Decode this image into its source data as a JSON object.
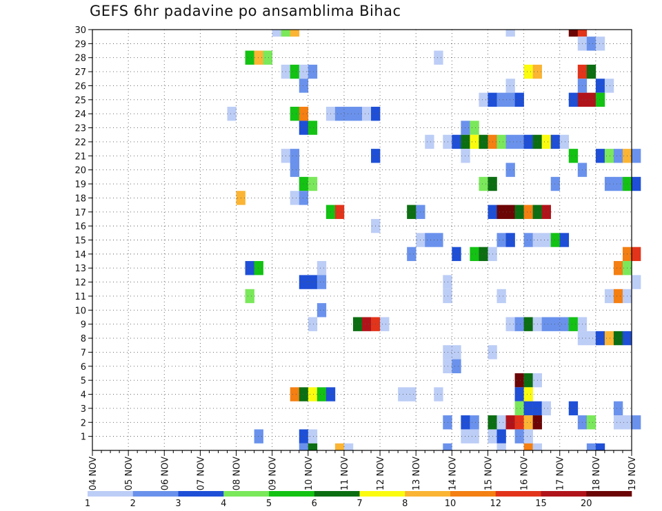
{
  "title": "GEFS 6hr padavine po ansamblima Bihac",
  "palette": {
    "c1": "#bccdf6",
    "c2": "#6a92ec",
    "c3": "#1e4fd6",
    "c4": "#7ae85a",
    "c5": "#13c213",
    "c6": "#0c6e12",
    "c7": "#fbfb10",
    "c8": "#fbb434",
    "c10": "#f47f12",
    "c12": "#e2341a",
    "c15": "#b0141a",
    "c20": "#6c0505"
  },
  "colorbar": {
    "labels": [
      "1",
      "2",
      "3",
      "4",
      "5",
      "6",
      "7",
      "8",
      "10",
      "12",
      "15",
      "20"
    ],
    "colors": [
      "c1",
      "c2",
      "c3",
      "c4",
      "c5",
      "c6",
      "c7",
      "c8",
      "c10",
      "c12",
      "c15",
      "c20"
    ]
  },
  "chart_data": {
    "type": "heatmap",
    "title": "GEFS 6hr padavine po ansamblima Bihac",
    "xlabel": "",
    "ylabel": "",
    "x_ticks": [
      "04 NOV",
      "05 NOV",
      "06 NOV",
      "07 NOV",
      "08 NOV",
      "09 NOV",
      "10 NOV",
      "11 NOV",
      "12 NOV",
      "13 NOV",
      "14 NOV",
      "15 NOV",
      "16 NOV",
      "17 NOV",
      "18 NOV",
      "19 NOV"
    ],
    "y_ticks": [
      "1",
      "2",
      "3",
      "4",
      "5",
      "6",
      "7",
      "8",
      "9",
      "10",
      "11",
      "12",
      "13",
      "14",
      "15",
      "16",
      "17",
      "18",
      "19",
      "20",
      "21",
      "22",
      "23",
      "24",
      "25",
      "26",
      "27",
      "28",
      "29",
      "30"
    ],
    "xlim": [
      "04 NOV",
      "19 NOV"
    ],
    "ylim": [
      0,
      30
    ],
    "step_hours": 6,
    "grid": true,
    "color_levels": [
      "1",
      "2",
      "3",
      "4",
      "5",
      "6",
      "7",
      "8",
      "10",
      "12",
      "15",
      "20"
    ],
    "rows": [
      {
        "y": 30,
        "cells": [
          [
            20,
            1
          ],
          [
            21,
            4
          ],
          [
            22,
            8
          ],
          [
            46,
            1
          ],
          [
            53,
            20
          ],
          [
            54,
            12
          ]
        ]
      },
      {
        "y": 29,
        "cells": [
          [
            54,
            1
          ],
          [
            55,
            2
          ],
          [
            56,
            1
          ]
        ]
      },
      {
        "y": 28,
        "cells": [
          [
            17,
            5
          ],
          [
            18,
            8
          ],
          [
            19,
            4
          ],
          [
            38,
            1
          ]
        ]
      },
      {
        "y": 27,
        "cells": [
          [
            21,
            1
          ],
          [
            22,
            5
          ],
          [
            23,
            1
          ],
          [
            24,
            2
          ],
          [
            48,
            7
          ],
          [
            49,
            8
          ],
          [
            54,
            12
          ],
          [
            55,
            6
          ]
        ]
      },
      {
        "y": 26,
        "cells": [
          [
            23,
            2
          ],
          [
            46,
            1
          ],
          [
            54,
            2
          ],
          [
            56,
            3
          ],
          [
            57,
            1
          ]
        ]
      },
      {
        "y": 25,
        "cells": [
          [
            43,
            1
          ],
          [
            44,
            3
          ],
          [
            45,
            2
          ],
          [
            46,
            2
          ],
          [
            47,
            3
          ],
          [
            53,
            3
          ],
          [
            54,
            15
          ],
          [
            55,
            15
          ],
          [
            56,
            5
          ]
        ]
      },
      {
        "y": 24,
        "cells": [
          [
            15,
            1
          ],
          [
            22,
            5
          ],
          [
            23,
            10
          ],
          [
            26,
            1
          ],
          [
            27,
            2
          ],
          [
            28,
            2
          ],
          [
            29,
            2
          ],
          [
            30,
            1
          ],
          [
            31,
            3
          ]
        ]
      },
      {
        "y": 23,
        "cells": [
          [
            23,
            3
          ],
          [
            24,
            5
          ],
          [
            41,
            2
          ],
          [
            42,
            4
          ]
        ]
      },
      {
        "y": 22,
        "cells": [
          [
            37,
            1
          ],
          [
            39,
            1
          ],
          [
            40,
            3
          ],
          [
            41,
            6
          ],
          [
            42,
            7
          ],
          [
            43,
            6
          ],
          [
            44,
            10
          ],
          [
            45,
            4
          ],
          [
            46,
            2
          ],
          [
            47,
            2
          ],
          [
            48,
            3
          ],
          [
            49,
            6
          ],
          [
            50,
            7
          ],
          [
            51,
            3
          ],
          [
            52,
            1
          ]
        ]
      },
      {
        "y": 21,
        "cells": [
          [
            21,
            1
          ],
          [
            22,
            2
          ],
          [
            31,
            3
          ],
          [
            41,
            1
          ],
          [
            53,
            5
          ],
          [
            56,
            3
          ],
          [
            57,
            4
          ],
          [
            58,
            2
          ],
          [
            59,
            8
          ],
          [
            60,
            2
          ]
        ]
      },
      {
        "y": 20,
        "cells": [
          [
            22,
            2
          ],
          [
            46,
            2
          ],
          [
            54,
            2
          ]
        ]
      },
      {
        "y": 19,
        "cells": [
          [
            23,
            5
          ],
          [
            24,
            4
          ],
          [
            43,
            4
          ],
          [
            44,
            6
          ],
          [
            51,
            2
          ],
          [
            57,
            2
          ],
          [
            58,
            2
          ],
          [
            59,
            5
          ],
          [
            60,
            3
          ]
        ]
      },
      {
        "y": 18,
        "cells": [
          [
            16,
            8
          ],
          [
            22,
            1
          ],
          [
            23,
            2
          ]
        ]
      },
      {
        "y": 17,
        "cells": [
          [
            26,
            5
          ],
          [
            27,
            12
          ],
          [
            35,
            6
          ],
          [
            36,
            2
          ],
          [
            44,
            3
          ],
          [
            45,
            20
          ],
          [
            46,
            20
          ],
          [
            47,
            6
          ],
          [
            48,
            10
          ],
          [
            49,
            6
          ],
          [
            50,
            15
          ]
        ]
      },
      {
        "y": 16,
        "cells": [
          [
            31,
            1
          ]
        ]
      },
      {
        "y": 15,
        "cells": [
          [
            36,
            1
          ],
          [
            37,
            2
          ],
          [
            38,
            2
          ],
          [
            45,
            2
          ],
          [
            46,
            3
          ],
          [
            48,
            2
          ],
          [
            49,
            1
          ],
          [
            50,
            1
          ],
          [
            51,
            5
          ],
          [
            52,
            3
          ]
        ]
      },
      {
        "y": 14,
        "cells": [
          [
            35,
            2
          ],
          [
            40,
            3
          ],
          [
            42,
            5
          ],
          [
            43,
            6
          ],
          [
            44,
            1
          ],
          [
            59,
            10
          ],
          [
            60,
            12
          ]
        ]
      },
      {
        "y": 13,
        "cells": [
          [
            17,
            3
          ],
          [
            18,
            5
          ],
          [
            25,
            1
          ],
          [
            58,
            10
          ],
          [
            59,
            4
          ]
        ]
      },
      {
        "y": 12,
        "cells": [
          [
            23,
            3
          ],
          [
            24,
            3
          ],
          [
            25,
            2
          ],
          [
            39,
            1
          ],
          [
            60,
            1
          ]
        ]
      },
      {
        "y": 11,
        "cells": [
          [
            17,
            4
          ],
          [
            39,
            1
          ],
          [
            45,
            1
          ],
          [
            57,
            1
          ],
          [
            58,
            10
          ],
          [
            59,
            1
          ]
        ]
      },
      {
        "y": 10,
        "cells": [
          [
            25,
            2
          ]
        ]
      },
      {
        "y": 9,
        "cells": [
          [
            24,
            1
          ],
          [
            29,
            6
          ],
          [
            30,
            15
          ],
          [
            31,
            12
          ],
          [
            32,
            1
          ],
          [
            46,
            1
          ],
          [
            47,
            2
          ],
          [
            48,
            6
          ],
          [
            49,
            1
          ],
          [
            50,
            2
          ],
          [
            51,
            2
          ],
          [
            52,
            2
          ],
          [
            53,
            5
          ],
          [
            54,
            1
          ]
        ]
      },
      {
        "y": 8,
        "cells": [
          [
            54,
            1
          ],
          [
            55,
            1
          ],
          [
            56,
            3
          ],
          [
            57,
            8
          ],
          [
            58,
            6
          ],
          [
            59,
            3
          ]
        ]
      },
      {
        "y": 7,
        "cells": [
          [
            39,
            1
          ],
          [
            40,
            1
          ],
          [
            44,
            1
          ]
        ]
      },
      {
        "y": 6,
        "cells": [
          [
            39,
            1
          ],
          [
            40,
            2
          ]
        ]
      },
      {
        "y": 5,
        "cells": [
          [
            47,
            20
          ],
          [
            48,
            6
          ],
          [
            49,
            1
          ]
        ]
      },
      {
        "y": 4,
        "cells": [
          [
            22,
            10
          ],
          [
            23,
            6
          ],
          [
            24,
            7
          ],
          [
            25,
            5
          ],
          [
            26,
            3
          ],
          [
            34,
            1
          ],
          [
            35,
            1
          ],
          [
            38,
            1
          ],
          [
            47,
            3
          ],
          [
            48,
            7
          ]
        ]
      },
      {
        "y": 3,
        "cells": [
          [
            47,
            4
          ],
          [
            48,
            3
          ],
          [
            49,
            3
          ],
          [
            50,
            1
          ],
          [
            53,
            3
          ],
          [
            58,
            2
          ]
        ]
      },
      {
        "y": 2,
        "cells": [
          [
            39,
            2
          ],
          [
            41,
            3
          ],
          [
            42,
            2
          ],
          [
            44,
            6
          ],
          [
            45,
            1
          ],
          [
            46,
            15
          ],
          [
            47,
            12
          ],
          [
            48,
            8
          ],
          [
            49,
            20
          ],
          [
            54,
            2
          ],
          [
            55,
            4
          ],
          [
            58,
            1
          ],
          [
            59,
            1
          ],
          [
            60,
            2
          ]
        ]
      },
      {
        "y": 1,
        "cells": [
          [
            18,
            2
          ],
          [
            23,
            3
          ],
          [
            24,
            1
          ],
          [
            41,
            1
          ],
          [
            42,
            1
          ],
          [
            44,
            1
          ],
          [
            45,
            3
          ],
          [
            47,
            2
          ],
          [
            48,
            1
          ]
        ]
      },
      {
        "y": 0,
        "cells": [
          [
            23,
            2
          ],
          [
            24,
            6
          ],
          [
            27,
            8
          ],
          [
            28,
            1
          ],
          [
            39,
            2
          ],
          [
            45,
            1
          ],
          [
            48,
            10
          ],
          [
            49,
            1
          ],
          [
            55,
            2
          ],
          [
            56,
            3
          ]
        ]
      }
    ]
  }
}
